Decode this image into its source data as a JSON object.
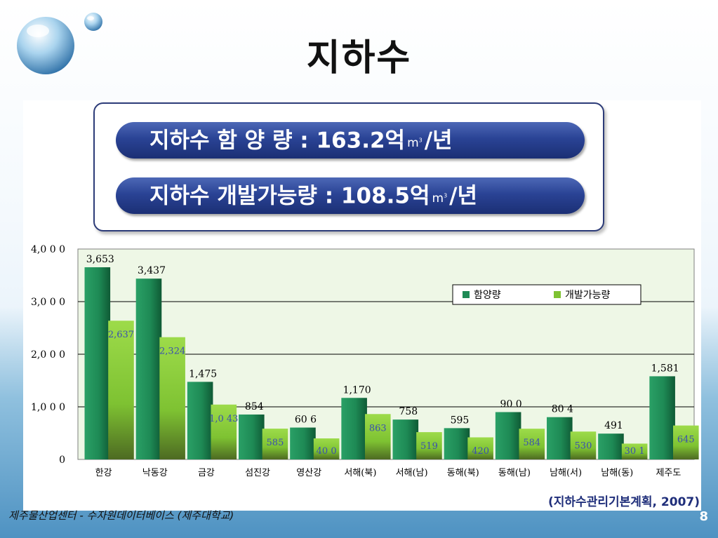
{
  "slide": {
    "title": "지하수",
    "page_number": "8",
    "footer_credit": "제주물산업센터 - 수자원데이터베이스 (제주대학교)",
    "source": "(지하수관리기본계획, 2007)"
  },
  "info_box": {
    "line1": {
      "label": "지하수 함   양   량 : 163.2억",
      "unit": "m",
      "unit_sup": "3",
      "suffix": "/년"
    },
    "line2": {
      "label": "지하수 개발가능량 : 108.5억",
      "unit": "m",
      "unit_sup": "3",
      "suffix": "/년"
    }
  },
  "colors": {
    "series1": "#1e8a55",
    "series2": "#7ec232",
    "pill": "#2a4395",
    "plot_bg": "#eef7e6"
  },
  "chart_data": {
    "type": "bar",
    "categories": [
      "한강",
      "낙동강",
      "금강",
      "섬진강",
      "영산강",
      "서해(북)",
      "서해(남)",
      "동해(북)",
      "동해(남)",
      "남해(서)",
      "남해(동)",
      "제주도"
    ],
    "series": [
      {
        "name": "함양량",
        "values": [
          3653,
          3437,
          1475,
          854,
          606,
          1170,
          758,
          595,
          900,
          804,
          491,
          1581
        ],
        "labels": [
          "3,653",
          "3,437",
          "1,475",
          "854",
          "60 6",
          "1,170",
          "758",
          "595",
          "90 0",
          "80 4",
          "491",
          "1,581"
        ]
      },
      {
        "name": "개발가능량",
        "values": [
          2637,
          2324,
          1043,
          585,
          400,
          863,
          519,
          420,
          584,
          530,
          301,
          645
        ],
        "labels": [
          "2,637",
          "2,324",
          "1,0 43",
          "585",
          "40 0",
          "863",
          "519",
          "420",
          "584",
          "530",
          "30 1",
          "645"
        ]
      }
    ],
    "yticks": [
      "0",
      "1,0 0 0",
      "2,0 0 0",
      "3,0 0 0",
      "4,0 0 0"
    ],
    "ylim": [
      0,
      4000
    ],
    "grid": true,
    "legend": "upper-right"
  }
}
